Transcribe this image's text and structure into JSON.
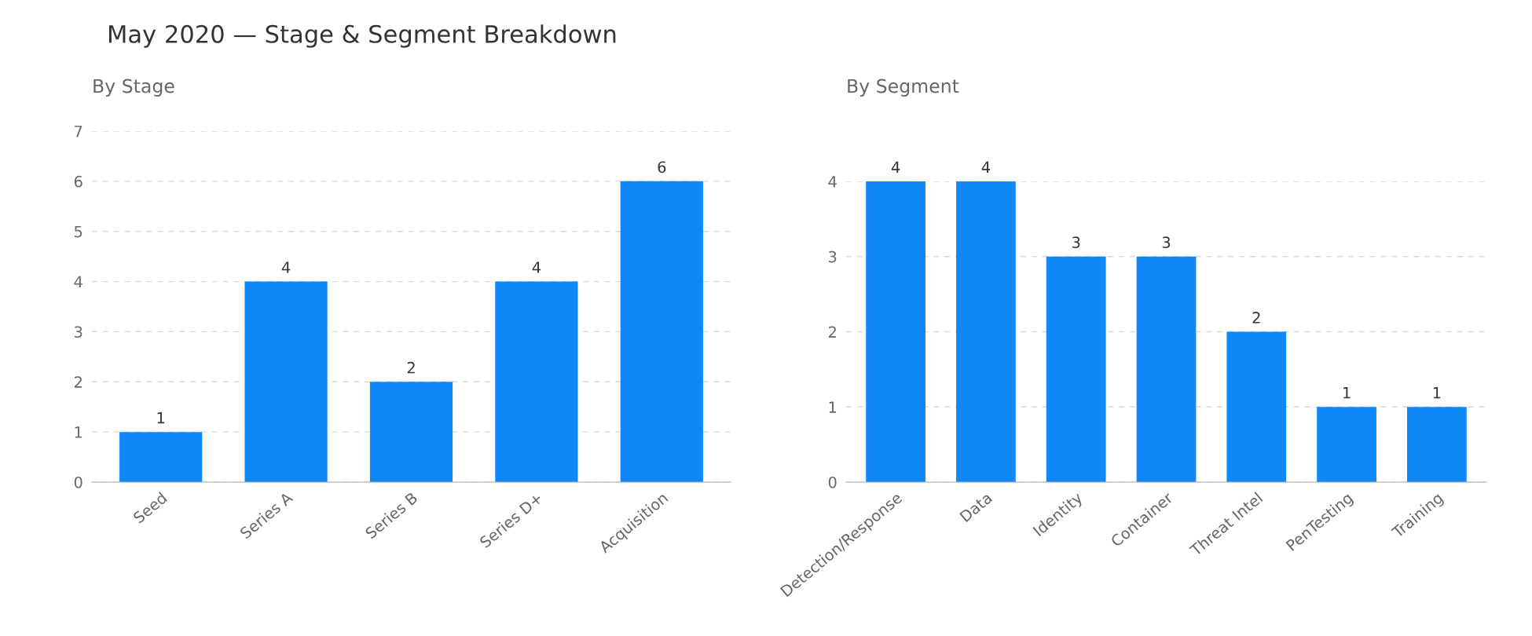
{
  "chart_data": [
    {
      "type": "bar",
      "title": "May 2020 — Stage & Segment Breakdown",
      "subtitle": "By Stage",
      "categories": [
        "Seed",
        "Series A",
        "Series B",
        "Series D+",
        "Acquisition"
      ],
      "values": [
        1,
        4,
        2,
        4,
        6
      ],
      "color": "#1188f8",
      "ylim": [
        0,
        7
      ],
      "yticks": [
        0,
        1,
        2,
        3,
        4,
        5,
        6,
        7
      ],
      "grid": "y",
      "data_labels": true
    },
    {
      "type": "bar",
      "subtitle": "By Segment",
      "categories": [
        "Detection/Response",
        "Data",
        "Identity",
        "Container",
        "Threat Intel",
        "PenTesting",
        "Training"
      ],
      "values": [
        4,
        4,
        3,
        3,
        2,
        1,
        1
      ],
      "color": "#1188f8",
      "ylim": [
        0,
        4
      ],
      "yticks": [
        0,
        1,
        2,
        3,
        4
      ],
      "grid": "y",
      "data_labels": true
    }
  ]
}
